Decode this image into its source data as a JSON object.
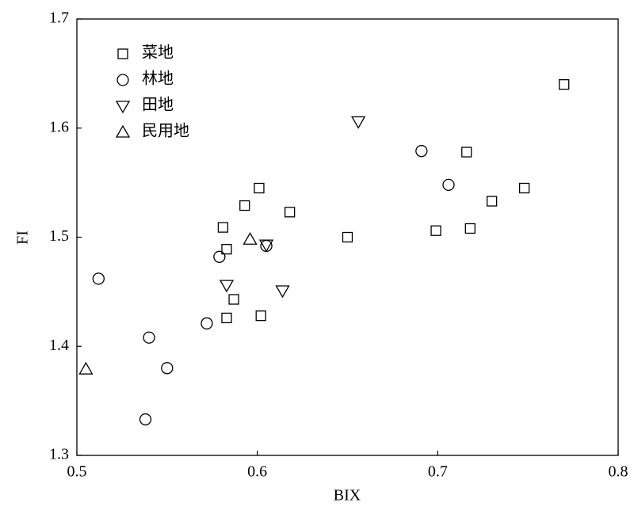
{
  "chart_data": {
    "type": "scatter",
    "x_label": "BIX",
    "y_label": "FI",
    "xlim": [
      0.5,
      0.8
    ],
    "xticks": [
      0.5,
      0.6,
      0.7,
      0.8
    ],
    "ylim": [
      1.3,
      1.7
    ],
    "yticks": [
      1.3,
      1.4,
      1.5,
      1.6,
      1.7
    ],
    "legend": "upper-left",
    "series": [
      {
        "name": "菜地",
        "marker": "square",
        "color": "#000000",
        "x": [
          0.77,
          0.716,
          0.699,
          0.718,
          0.73,
          0.748,
          0.65,
          0.601,
          0.593,
          0.618,
          0.581,
          0.583,
          0.587,
          0.583,
          0.602
        ],
        "values": [
          1.64,
          1.578,
          1.506,
          1.508,
          1.533,
          1.545,
          1.5,
          1.545,
          1.529,
          1.523,
          1.509,
          1.489,
          1.443,
          1.426,
          1.428
        ]
      },
      {
        "name": "林地",
        "marker": "circle",
        "color": "#000000",
        "x": [
          0.691,
          0.706,
          0.579,
          0.605,
          0.512,
          0.54,
          0.55,
          0.572,
          0.538
        ],
        "values": [
          1.579,
          1.548,
          1.482,
          1.492,
          1.462,
          1.408,
          1.38,
          1.421,
          1.333
        ]
      },
      {
        "name": "田地",
        "marker": "triangle-down",
        "color": "#000000",
        "x": [
          0.656,
          0.583,
          0.614,
          0.605
        ],
        "values": [
          1.606,
          1.456,
          1.451,
          1.493
        ]
      },
      {
        "name": "民用地",
        "marker": "triangle-up",
        "color": "#000000",
        "x": [
          0.505,
          0.596
        ],
        "values": [
          1.379,
          1.498
        ]
      }
    ]
  }
}
